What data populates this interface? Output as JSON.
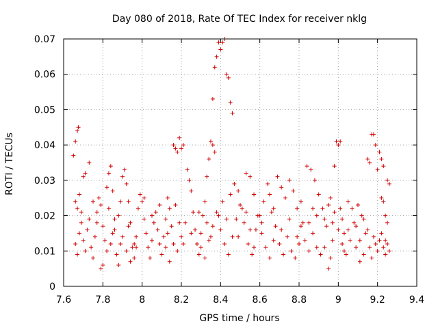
{
  "chart_data": {
    "type": "scatter",
    "title": "Day 080 of 2018, Rate Of TEC Index for receiver nklg",
    "xlabel": "GPS time / hours",
    "ylabel": "ROTI / TECUs",
    "xlim": [
      7.6,
      9.4
    ],
    "ylim": [
      0,
      0.07
    ],
    "xticks": [
      "7.6",
      "7.8",
      "8",
      "8.2",
      "8.4",
      "8.6",
      "8.8",
      "9",
      "9.2",
      "9.4"
    ],
    "yticks": [
      "0",
      "0.01",
      "0.02",
      "0.03",
      "0.04",
      "0.05",
      "0.06",
      "0.07"
    ],
    "grid": true,
    "marker": "+",
    "color": "#d00000",
    "series": [
      {
        "name": "ROTI",
        "points": [
          [
            7.65,
            0.037
          ],
          [
            7.66,
            0.041
          ],
          [
            7.67,
            0.044
          ],
          [
            7.675,
            0.045
          ],
          [
            7.66,
            0.024
          ],
          [
            7.67,
            0.022
          ],
          [
            7.68,
            0.026
          ],
          [
            7.69,
            0.021
          ],
          [
            7.7,
            0.031
          ],
          [
            7.71,
            0.032
          ],
          [
            7.73,
            0.035
          ],
          [
            7.66,
            0.012
          ],
          [
            7.67,
            0.009
          ],
          [
            7.68,
            0.015
          ],
          [
            7.69,
            0.018
          ],
          [
            7.7,
            0.013
          ],
          [
            7.71,
            0.01
          ],
          [
            7.72,
            0.016
          ],
          [
            7.73,
            0.019
          ],
          [
            7.74,
            0.011
          ],
          [
            7.75,
            0.008
          ],
          [
            7.76,
            0.014
          ],
          [
            7.77,
            0.021
          ],
          [
            7.78,
            0.025
          ],
          [
            7.79,
            0.023
          ],
          [
            7.8,
            0.017
          ],
          [
            7.81,
            0.013
          ],
          [
            7.82,
            0.028
          ],
          [
            7.83,
            0.032
          ],
          [
            7.84,
            0.034
          ],
          [
            7.85,
            0.027
          ],
          [
            7.86,
            0.019
          ],
          [
            7.87,
            0.009
          ],
          [
            7.88,
            0.006
          ],
          [
            7.89,
            0.012
          ],
          [
            7.9,
            0.031
          ],
          [
            7.91,
            0.033
          ],
          [
            7.92,
            0.029
          ],
          [
            7.93,
            0.024
          ],
          [
            7.94,
            0.018
          ],
          [
            7.95,
            0.011
          ],
          [
            7.96,
            0.008
          ],
          [
            7.97,
            0.014
          ],
          [
            7.98,
            0.022
          ],
          [
            7.79,
            0.005
          ],
          [
            7.8,
            0.006
          ],
          [
            7.82,
            0.01
          ],
          [
            7.84,
            0.012
          ],
          [
            7.86,
            0.016
          ],
          [
            7.88,
            0.02
          ],
          [
            7.9,
            0.014
          ],
          [
            7.92,
            0.01
          ],
          [
            7.94,
            0.007
          ],
          [
            7.96,
            0.012
          ],
          [
            7.99,
            0.026
          ],
          [
            8.0,
            0.024
          ],
          [
            8.01,
            0.019
          ],
          [
            8.02,
            0.015
          ],
          [
            8.03,
            0.011
          ],
          [
            8.04,
            0.008
          ],
          [
            8.05,
            0.013
          ],
          [
            8.06,
            0.018
          ],
          [
            8.07,
            0.021
          ],
          [
            8.08,
            0.016
          ],
          [
            8.09,
            0.012
          ],
          [
            8.1,
            0.009
          ],
          [
            8.11,
            0.014
          ],
          [
            8.12,
            0.019
          ],
          [
            8.13,
            0.025
          ],
          [
            8.14,
            0.022
          ],
          [
            8.15,
            0.017
          ],
          [
            8.16,
            0.04
          ],
          [
            8.17,
            0.039
          ],
          [
            8.18,
            0.038
          ],
          [
            8.19,
            0.042
          ],
          [
            8.2,
            0.039
          ],
          [
            8.21,
            0.04
          ],
          [
            8.12,
            0.011
          ],
          [
            8.14,
            0.007
          ],
          [
            8.16,
            0.012
          ],
          [
            8.18,
            0.01
          ],
          [
            8.2,
            0.014
          ],
          [
            8.22,
            0.018
          ],
          [
            8.23,
            0.033
          ],
          [
            8.24,
            0.03
          ],
          [
            8.25,
            0.027
          ],
          [
            8.26,
            0.021
          ],
          [
            8.27,
            0.016
          ],
          [
            8.28,
            0.012
          ],
          [
            8.29,
            0.009
          ],
          [
            8.3,
            0.015
          ],
          [
            8.31,
            0.02
          ],
          [
            8.32,
            0.024
          ],
          [
            8.33,
            0.031
          ],
          [
            8.34,
            0.036
          ],
          [
            8.35,
            0.041
          ],
          [
            8.36,
            0.053
          ],
          [
            8.37,
            0.062
          ],
          [
            8.38,
            0.065
          ],
          [
            8.39,
            0.069
          ],
          [
            8.4,
            0.067
          ],
          [
            8.41,
            0.069
          ],
          [
            8.42,
            0.07
          ],
          [
            8.43,
            0.06
          ],
          [
            8.44,
            0.059
          ],
          [
            8.45,
            0.052
          ],
          [
            8.46,
            0.049
          ],
          [
            8.36,
            0.04
          ],
          [
            8.37,
            0.038
          ],
          [
            8.3,
            0.011
          ],
          [
            8.32,
            0.008
          ],
          [
            8.34,
            0.013
          ],
          [
            8.36,
            0.017
          ],
          [
            8.38,
            0.021
          ],
          [
            8.4,
            0.016
          ],
          [
            8.42,
            0.012
          ],
          [
            8.44,
            0.009
          ],
          [
            8.46,
            0.014
          ],
          [
            8.48,
            0.019
          ],
          [
            8.5,
            0.023
          ],
          [
            8.47,
            0.029
          ],
          [
            8.49,
            0.027
          ],
          [
            8.51,
            0.022
          ],
          [
            8.53,
            0.032
          ],
          [
            8.55,
            0.031
          ],
          [
            8.57,
            0.026
          ],
          [
            8.59,
            0.02
          ],
          [
            8.61,
            0.015
          ],
          [
            8.63,
            0.011
          ],
          [
            8.65,
            0.008
          ],
          [
            8.67,
            0.013
          ],
          [
            8.52,
            0.018
          ],
          [
            8.54,
            0.012
          ],
          [
            8.56,
            0.009
          ],
          [
            8.58,
            0.016
          ],
          [
            8.6,
            0.02
          ],
          [
            8.62,
            0.024
          ],
          [
            8.64,
            0.029
          ],
          [
            8.66,
            0.021
          ],
          [
            8.68,
            0.017
          ],
          [
            8.7,
            0.012
          ],
          [
            8.72,
            0.009
          ],
          [
            8.69,
            0.031
          ],
          [
            8.71,
            0.028
          ],
          [
            8.73,
            0.025
          ],
          [
            8.75,
            0.03
          ],
          [
            8.77,
            0.027
          ],
          [
            8.79,
            0.022
          ],
          [
            8.81,
            0.017
          ],
          [
            8.83,
            0.013
          ],
          [
            8.85,
            0.01
          ],
          [
            8.87,
            0.015
          ],
          [
            8.89,
            0.02
          ],
          [
            8.74,
            0.014
          ],
          [
            8.76,
            0.01
          ],
          [
            8.78,
            0.008
          ],
          [
            8.8,
            0.012
          ],
          [
            8.82,
            0.018
          ],
          [
            8.84,
            0.034
          ],
          [
            8.86,
            0.033
          ],
          [
            8.88,
            0.03
          ],
          [
            8.9,
            0.026
          ],
          [
            8.92,
            0.022
          ],
          [
            8.94,
            0.017
          ],
          [
            8.91,
            0.009
          ],
          [
            8.93,
            0.011
          ],
          [
            8.95,
            0.005
          ],
          [
            8.96,
            0.008
          ],
          [
            8.97,
            0.013
          ],
          [
            8.98,
            0.034
          ],
          [
            8.99,
            0.041
          ],
          [
            9.0,
            0.04
          ],
          [
            9.01,
            0.041
          ],
          [
            9.02,
            0.019
          ],
          [
            9.03,
            0.015
          ],
          [
            8.96,
            0.025
          ],
          [
            8.98,
            0.021
          ],
          [
            9.0,
            0.016
          ],
          [
            9.02,
            0.012
          ],
          [
            9.04,
            0.009
          ],
          [
            9.06,
            0.013
          ],
          [
            9.08,
            0.018
          ],
          [
            9.1,
            0.023
          ],
          [
            9.12,
            0.02
          ],
          [
            9.14,
            0.015
          ],
          [
            9.16,
            0.011
          ],
          [
            9.05,
            0.024
          ],
          [
            9.07,
            0.022
          ],
          [
            9.09,
            0.017
          ],
          [
            9.11,
            0.013
          ],
          [
            9.13,
            0.009
          ],
          [
            9.15,
            0.036
          ],
          [
            9.16,
            0.035
          ],
          [
            9.17,
            0.043
          ],
          [
            9.18,
            0.043
          ],
          [
            9.19,
            0.04
          ],
          [
            9.2,
            0.033
          ],
          [
            9.21,
            0.038
          ],
          [
            9.22,
            0.036
          ],
          [
            9.23,
            0.034
          ],
          [
            9.22,
            0.025
          ],
          [
            9.23,
            0.024
          ],
          [
            9.24,
            0.02
          ],
          [
            9.25,
            0.018
          ],
          [
            9.26,
            0.029
          ],
          [
            9.25,
            0.03
          ],
          [
            9.24,
            0.013
          ],
          [
            9.25,
            0.012
          ],
          [
            9.18,
            0.014
          ],
          [
            9.19,
            0.012
          ],
          [
            9.2,
            0.01
          ],
          [
            9.21,
            0.013
          ],
          [
            9.22,
            0.015
          ],
          [
            9.23,
            0.011
          ],
          [
            9.24,
            0.009
          ],
          [
            9.26,
            0.01
          ],
          [
            9.17,
            0.008
          ],
          [
            9.15,
            0.016
          ],
          [
            9.13,
            0.019
          ],
          [
            7.75,
            0.024
          ],
          [
            7.77,
            0.018
          ],
          [
            7.83,
            0.022
          ],
          [
            7.85,
            0.015
          ],
          [
            7.89,
            0.024
          ],
          [
            7.93,
            0.017
          ],
          [
            7.97,
            0.011
          ],
          [
            8.01,
            0.025
          ],
          [
            8.05,
            0.02
          ],
          [
            8.09,
            0.023
          ],
          [
            8.13,
            0.015
          ],
          [
            8.17,
            0.023
          ],
          [
            8.19,
            0.018
          ],
          [
            8.21,
            0.012
          ],
          [
            8.25,
            0.015
          ],
          [
            8.29,
            0.021
          ],
          [
            8.33,
            0.018
          ],
          [
            8.35,
            0.014
          ],
          [
            8.39,
            0.02
          ],
          [
            8.41,
            0.024
          ],
          [
            8.43,
            0.019
          ],
          [
            8.45,
            0.026
          ],
          [
            8.49,
            0.014
          ],
          [
            8.53,
            0.021
          ],
          [
            8.55,
            0.016
          ],
          [
            8.57,
            0.011
          ],
          [
            8.61,
            0.018
          ],
          [
            8.65,
            0.026
          ],
          [
            8.67,
            0.022
          ],
          [
            8.71,
            0.016
          ],
          [
            8.75,
            0.019
          ],
          [
            8.79,
            0.014
          ],
          [
            8.81,
            0.024
          ],
          [
            8.85,
            0.018
          ],
          [
            8.87,
            0.022
          ],
          [
            8.89,
            0.011
          ],
          [
            8.93,
            0.019
          ],
          [
            8.95,
            0.023
          ],
          [
            8.97,
            0.018
          ],
          [
            9.01,
            0.022
          ],
          [
            9.03,
            0.01
          ],
          [
            9.05,
            0.016
          ],
          [
            9.09,
            0.011
          ],
          [
            9.11,
            0.007
          ]
        ]
      }
    ]
  }
}
